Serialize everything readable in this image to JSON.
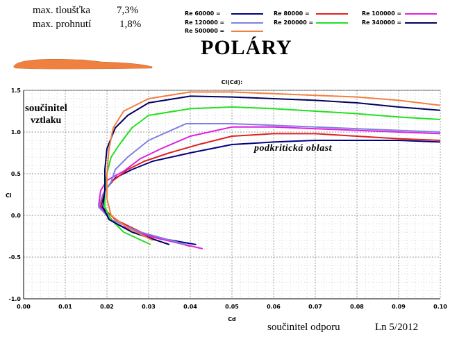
{
  "header": {
    "thickness_label": "max. tloušťka",
    "thickness_value": "7,3%",
    "camber_label": "max. prohnutí",
    "camber_value": "1,8%",
    "title": "POLÁRY"
  },
  "annotations": {
    "lift_line1": "součinitel",
    "lift_line2": "vztlaku",
    "subcritical": "podkritická oblast",
    "drag_label": "součinitel odporu",
    "credit": "Ln 5/2012"
  },
  "colors": {
    "airfoil": "#f08040",
    "grid": "#aaaaaa"
  },
  "chart_data": {
    "type": "line",
    "title": "Cl(Cd):",
    "xlabel": "Cd",
    "ylabel": "Cl",
    "xlim": [
      0,
      0.1
    ],
    "ylim": [
      -1.0,
      1.5
    ],
    "x_ticks": [
      "0.00",
      "0.01",
      "0.02",
      "0.03",
      "0.04",
      "0.05",
      "0.06",
      "0.07",
      "0.08",
      "0.09",
      "0.10"
    ],
    "y_ticks": [
      "1.5",
      "1.0",
      "0.5",
      "0.0",
      "-0.5",
      "-1.0"
    ],
    "grid": true,
    "legend_position": "top",
    "series": [
      {
        "name": "Re 60000 =",
        "color": "#000080",
        "points": [
          [
            0.0414,
            -0.35
          ],
          [
            0.03,
            -0.25
          ],
          [
            0.022,
            -0.1
          ],
          [
            0.0185,
            0.1
          ],
          [
            0.019,
            0.2
          ],
          [
            0.0195,
            0.3
          ],
          [
            0.022,
            0.45
          ],
          [
            0.026,
            0.55
          ],
          [
            0.031,
            0.65
          ],
          [
            0.04,
            0.75
          ],
          [
            0.05,
            0.85
          ],
          [
            0.06,
            0.88
          ],
          [
            0.07,
            0.9
          ],
          [
            0.08,
            0.9
          ],
          [
            0.09,
            0.9
          ],
          [
            0.1,
            0.88
          ]
        ]
      },
      {
        "name": "Re 80000 =",
        "color": "#e02020",
        "points": [
          [
            0.04,
            -0.37
          ],
          [
            0.029,
            -0.22
          ],
          [
            0.022,
            -0.05
          ],
          [
            0.0185,
            0.12
          ],
          [
            0.019,
            0.25
          ],
          [
            0.021,
            0.4
          ],
          [
            0.025,
            0.55
          ],
          [
            0.029,
            0.65
          ],
          [
            0.035,
            0.75
          ],
          [
            0.042,
            0.85
          ],
          [
            0.05,
            0.95
          ],
          [
            0.06,
            0.98
          ],
          [
            0.07,
            0.98
          ],
          [
            0.08,
            0.95
          ],
          [
            0.09,
            0.92
          ],
          [
            0.1,
            0.9
          ]
        ]
      },
      {
        "name": "Re 100000 =",
        "color": "#e020e0",
        "points": [
          [
            0.043,
            -0.4
          ],
          [
            0.03,
            -0.25
          ],
          [
            0.022,
            -0.1
          ],
          [
            0.018,
            0.12
          ],
          [
            0.0185,
            0.3
          ],
          [
            0.02,
            0.42
          ],
          [
            0.024,
            0.53
          ],
          [
            0.028,
            0.68
          ],
          [
            0.033,
            0.8
          ],
          [
            0.04,
            0.95
          ],
          [
            0.05,
            1.06
          ],
          [
            0.06,
            1.06
          ],
          [
            0.07,
            1.04
          ],
          [
            0.08,
            1.02
          ],
          [
            0.09,
            1.0
          ],
          [
            0.1,
            0.98
          ]
        ]
      },
      {
        "name": "Re 120000 =",
        "color": "#8080e0",
        "points": [
          [
            0.039,
            -0.35
          ],
          [
            0.028,
            -0.2
          ],
          [
            0.021,
            -0.05
          ],
          [
            0.018,
            0.1
          ],
          [
            0.019,
            0.25
          ],
          [
            0.021,
            0.4
          ],
          [
            0.022,
            0.55
          ],
          [
            0.025,
            0.7
          ],
          [
            0.03,
            0.9
          ],
          [
            0.039,
            1.1
          ],
          [
            0.05,
            1.1
          ],
          [
            0.06,
            1.08
          ],
          [
            0.07,
            1.06
          ],
          [
            0.08,
            1.04
          ],
          [
            0.09,
            1.02
          ],
          [
            0.1,
            1.0
          ]
        ]
      },
      {
        "name": "Re 200000 =",
        "color": "#20e020",
        "points": [
          [
            0.0305,
            -0.35
          ],
          [
            0.024,
            -0.2
          ],
          [
            0.021,
            -0.05
          ],
          [
            0.0195,
            0.1
          ],
          [
            0.0195,
            0.3
          ],
          [
            0.02,
            0.5
          ],
          [
            0.021,
            0.7
          ],
          [
            0.023,
            0.85
          ],
          [
            0.026,
            1.05
          ],
          [
            0.03,
            1.2
          ],
          [
            0.04,
            1.28
          ],
          [
            0.05,
            1.3
          ],
          [
            0.06,
            1.28
          ],
          [
            0.07,
            1.25
          ],
          [
            0.08,
            1.22
          ],
          [
            0.09,
            1.18
          ],
          [
            0.1,
            1.15
          ]
        ]
      },
      {
        "name": "Re 340000 =",
        "color": "#000060",
        "points": [
          [
            0.035,
            -0.35
          ],
          [
            0.026,
            -0.2
          ],
          [
            0.0205,
            -0.05
          ],
          [
            0.019,
            0.1
          ],
          [
            0.0195,
            0.3
          ],
          [
            0.0195,
            0.55
          ],
          [
            0.02,
            0.8
          ],
          [
            0.022,
            1.05
          ],
          [
            0.025,
            1.2
          ],
          [
            0.03,
            1.35
          ],
          [
            0.04,
            1.43
          ],
          [
            0.05,
            1.42
          ],
          [
            0.06,
            1.4
          ],
          [
            0.07,
            1.38
          ],
          [
            0.08,
            1.35
          ],
          [
            0.09,
            1.3
          ],
          [
            0.1,
            1.26
          ]
        ]
      },
      {
        "name": "Re 500000 =",
        "color": "#f08040",
        "points": [
          [
            0.031,
            -0.3
          ],
          [
            0.025,
            -0.15
          ],
          [
            0.021,
            0.0
          ],
          [
            0.02,
            0.2
          ],
          [
            0.02,
            0.5
          ],
          [
            0.0205,
            0.8
          ],
          [
            0.0215,
            1.05
          ],
          [
            0.024,
            1.25
          ],
          [
            0.03,
            1.4
          ],
          [
            0.04,
            1.48
          ],
          [
            0.05,
            1.48
          ],
          [
            0.06,
            1.46
          ],
          [
            0.07,
            1.44
          ],
          [
            0.08,
            1.42
          ],
          [
            0.09,
            1.38
          ],
          [
            0.1,
            1.32
          ]
        ]
      }
    ]
  }
}
